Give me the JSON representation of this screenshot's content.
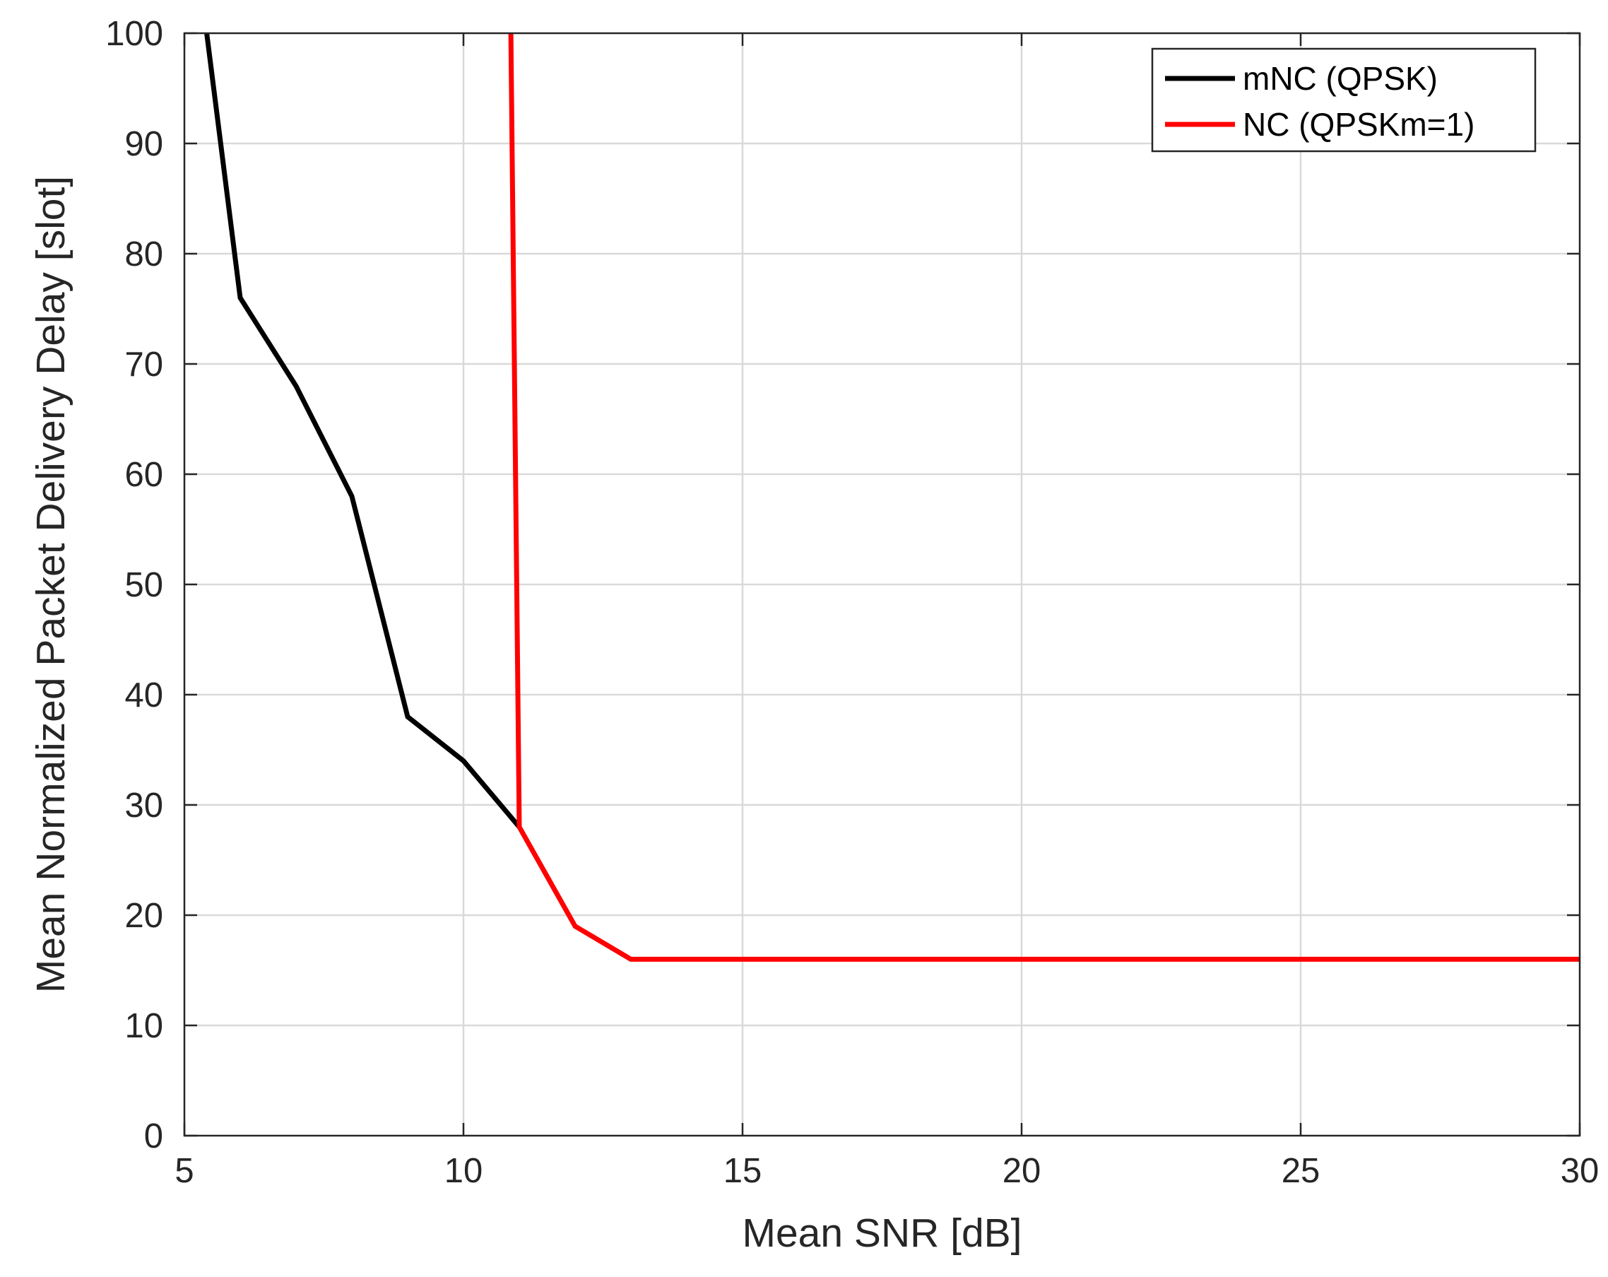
{
  "chart_data": {
    "type": "line",
    "title": "",
    "xlabel": "Mean SNR [dB]",
    "ylabel": "Mean Normalized Packet Delivery Delay [slot]",
    "xlim": [
      5,
      30
    ],
    "ylim": [
      0,
      100
    ],
    "xticks": [
      5,
      10,
      15,
      20,
      25,
      30
    ],
    "yticks": [
      0,
      10,
      20,
      30,
      40,
      50,
      60,
      70,
      80,
      90,
      100
    ],
    "xtick_labels": [
      "5",
      "10",
      "15",
      "20",
      "25",
      "30"
    ],
    "ytick_labels": [
      "0",
      "10",
      "20",
      "30",
      "40",
      "50",
      "60",
      "70",
      "80",
      "90",
      "100"
    ],
    "grid": true,
    "legend_position": "top-right",
    "series": [
      {
        "name": "mNC (QPSK)",
        "color": "#000000",
        "x": [
          5.4,
          6,
          7,
          8,
          9,
          10,
          11
        ],
        "y": [
          100,
          76,
          68,
          58,
          38,
          34,
          28
        ]
      },
      {
        "name": "NC (QPSKm=1)",
        "color": "#ff0000",
        "x": [
          10.85,
          11,
          12,
          13,
          14,
          15,
          16,
          17,
          18,
          19,
          20,
          21,
          22,
          23,
          24,
          25,
          26,
          27,
          28,
          29,
          30
        ],
        "y": [
          100,
          28,
          19,
          16,
          16,
          16,
          16,
          16,
          16,
          16,
          16,
          16,
          16,
          16,
          16,
          16,
          16,
          16,
          16,
          16,
          16
        ]
      }
    ]
  }
}
